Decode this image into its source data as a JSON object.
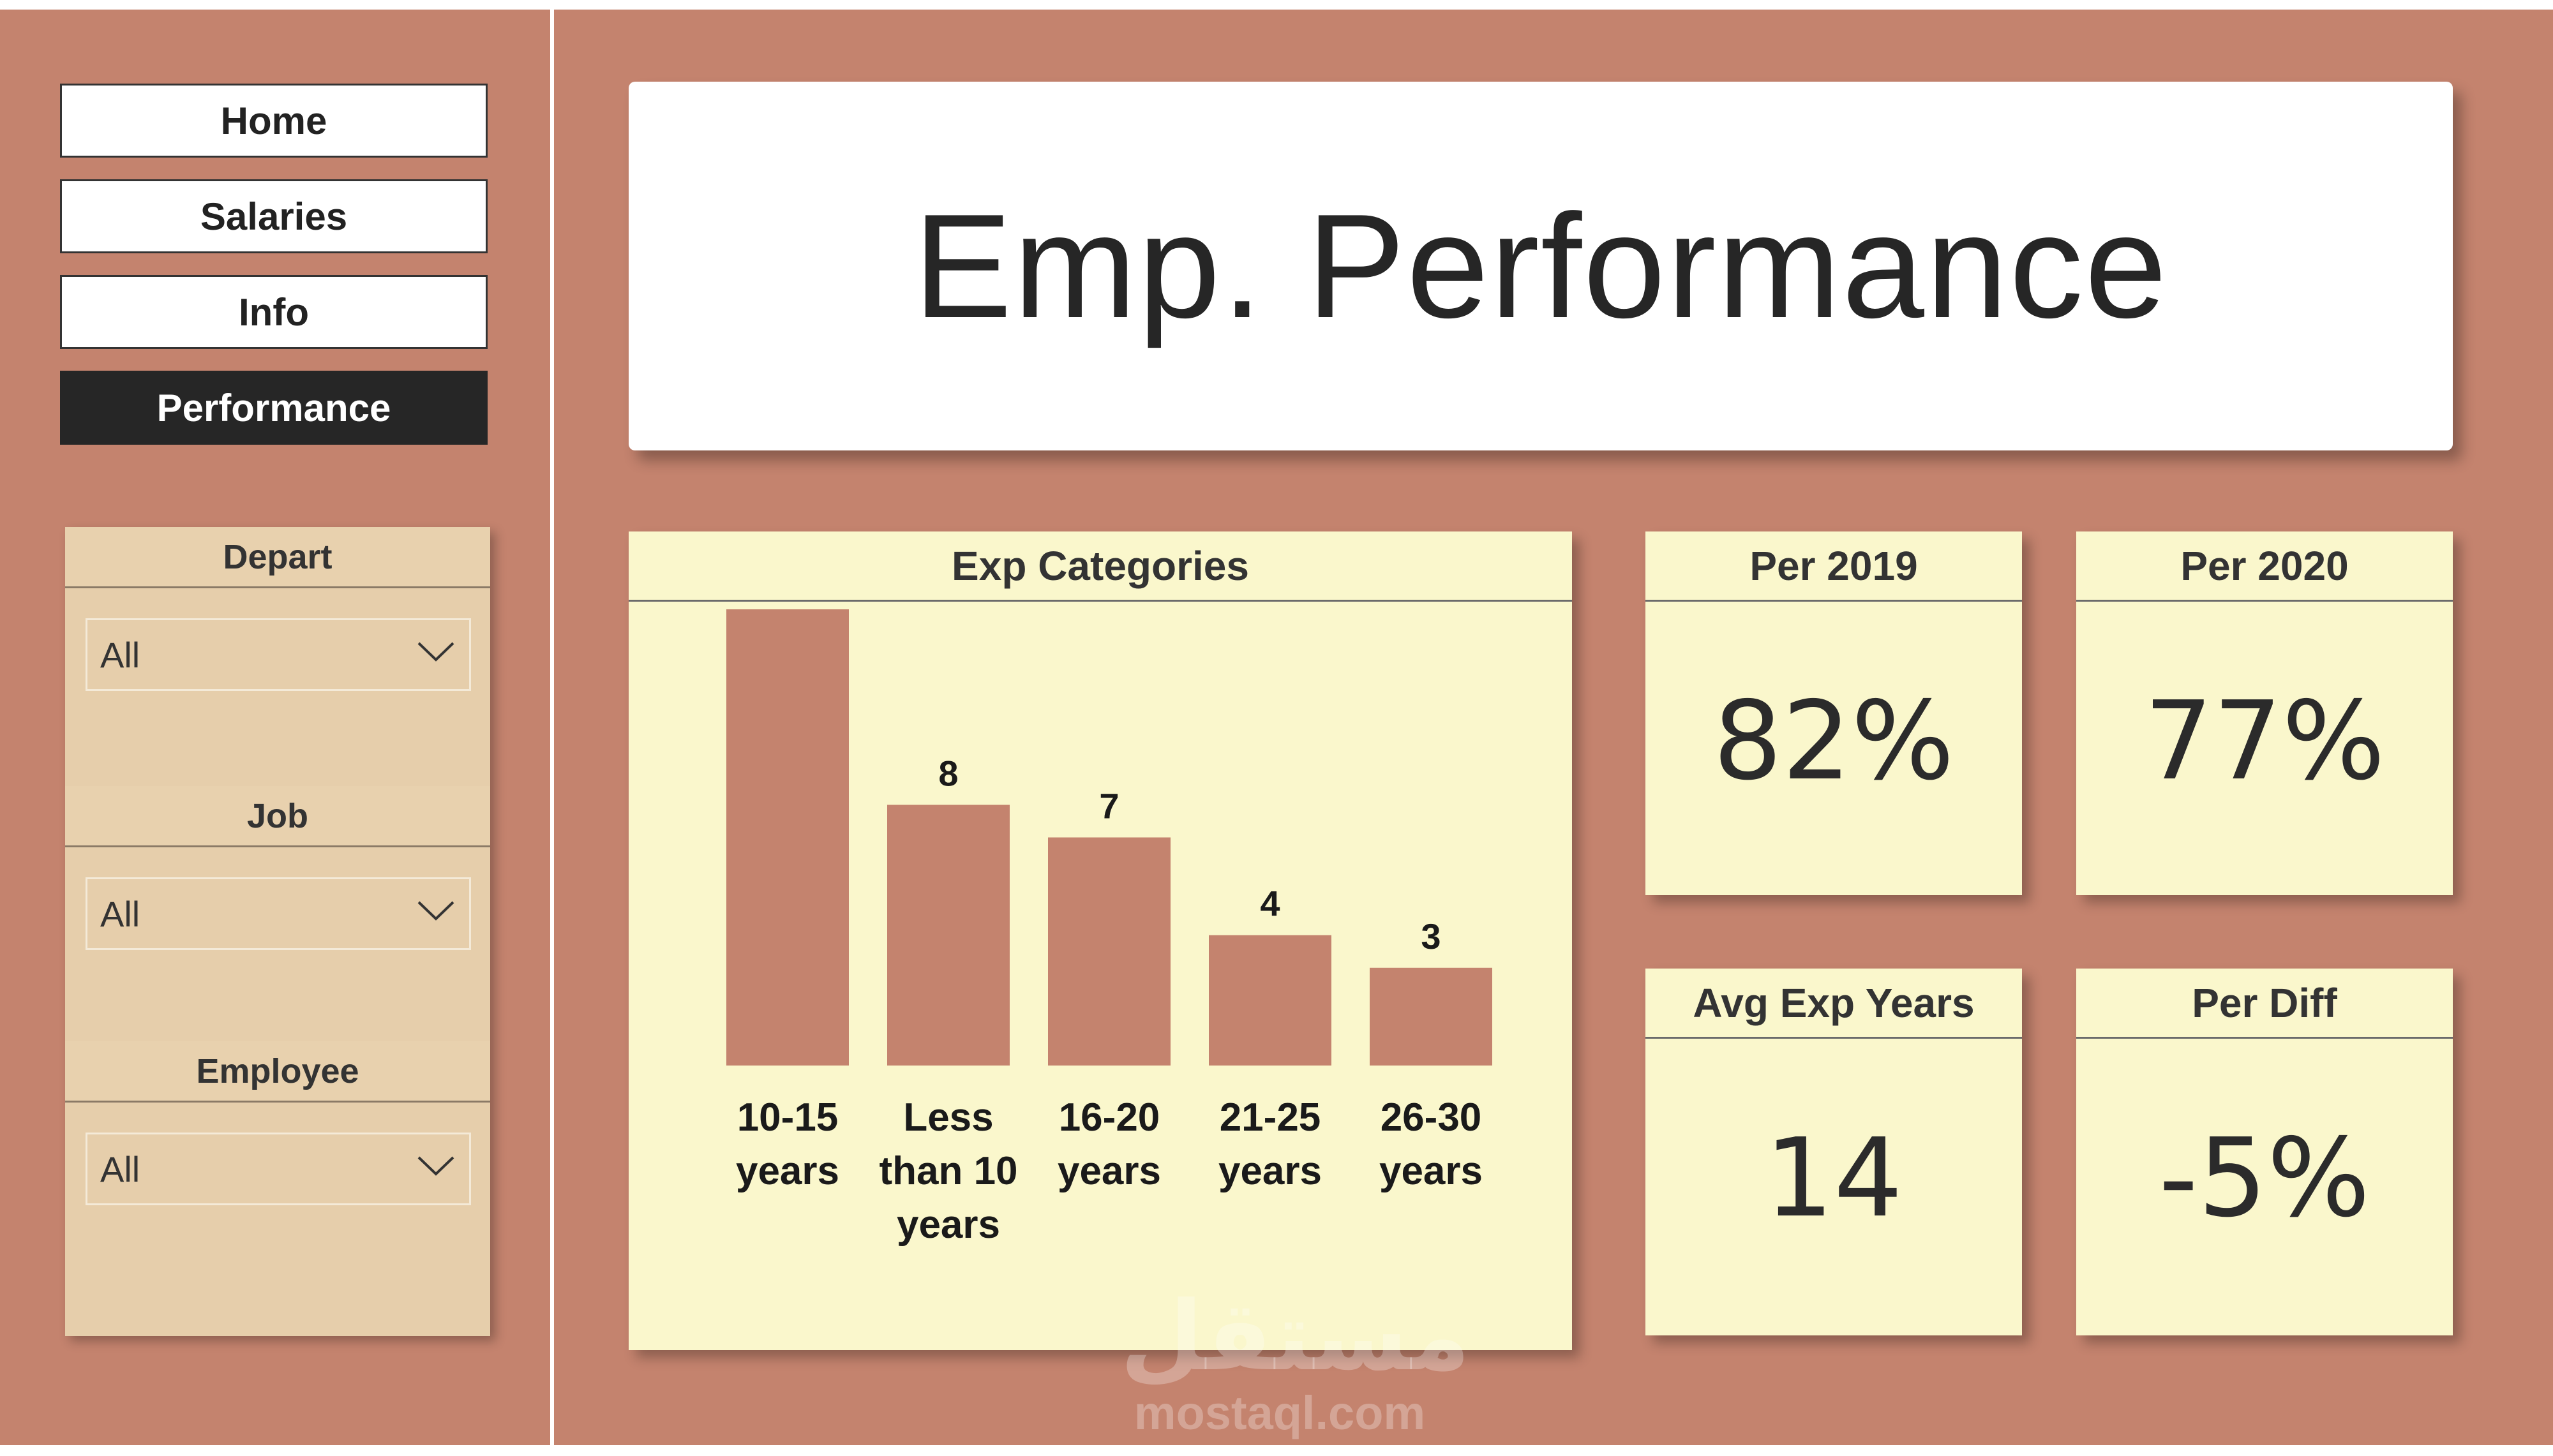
{
  "nav": {
    "items": [
      {
        "label": "Home",
        "active": false
      },
      {
        "label": "Salaries",
        "active": false
      },
      {
        "label": "Info",
        "active": false
      },
      {
        "label": "Performance",
        "active": true
      }
    ]
  },
  "filters": [
    {
      "label": "Depart",
      "value": "All"
    },
    {
      "label": "Job",
      "value": "All"
    },
    {
      "label": "Employee",
      "value": "All"
    }
  ],
  "page_title": "Emp. Performance",
  "chart_card": {
    "title": "Exp Categories"
  },
  "chart_data": {
    "type": "bar",
    "title": "Exp Categories",
    "categories": [
      [
        "10-15",
        "years"
      ],
      [
        "Less",
        "than 10",
        "years"
      ],
      [
        "16-20",
        "years"
      ],
      [
        "21-25",
        "years"
      ],
      [
        "26-30",
        "years"
      ]
    ],
    "values": [
      14,
      8,
      7,
      4,
      3
    ],
    "data_labels": true,
    "grid": false,
    "bar_color": "#c4836e"
  },
  "kpis": [
    {
      "label": "Per 2019",
      "value": "82%"
    },
    {
      "label": "Per 2020",
      "value": "77%"
    },
    {
      "label": "Avg Exp Years",
      "value": "14"
    },
    {
      "label": "Per Diff",
      "value": "-5%"
    }
  ],
  "watermark": {
    "arabic": "مستقل",
    "latin": "mostaql.com"
  },
  "colors": {
    "background": "#c4836e",
    "card": "#faf7cc",
    "slicer_panel": "#e6ceab",
    "nav_active": "#262626"
  }
}
